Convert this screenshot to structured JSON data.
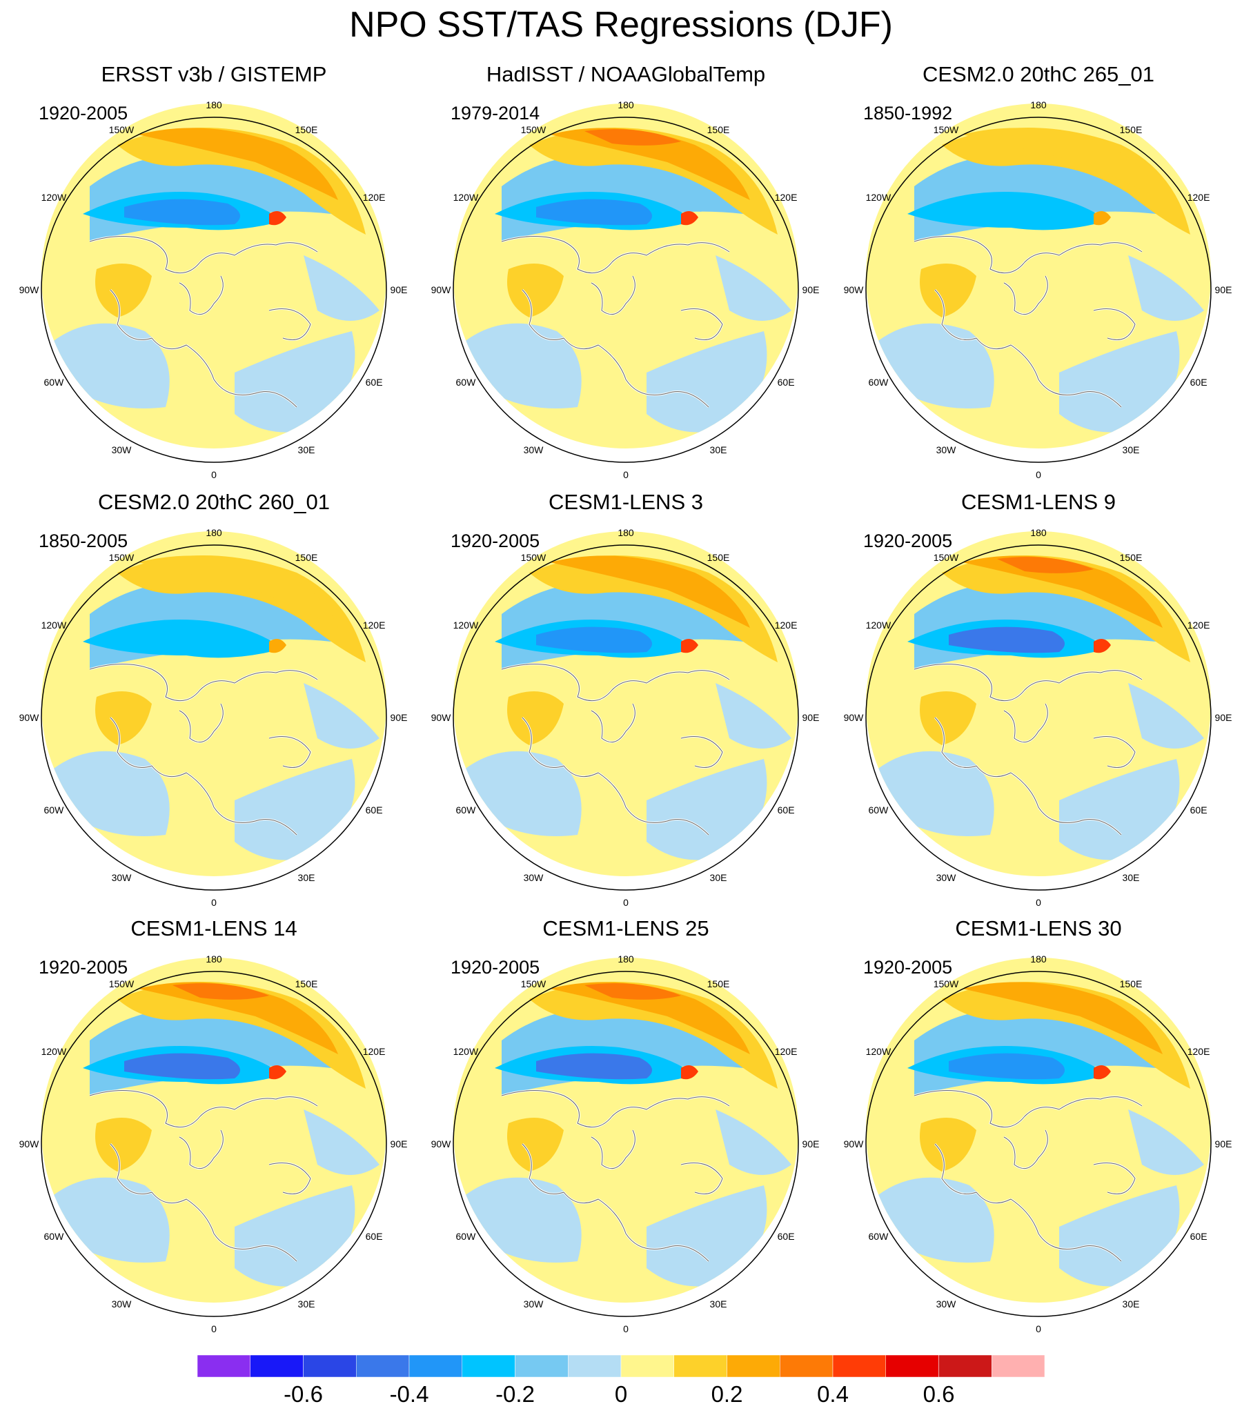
{
  "title": "NPO SST/TAS Regressions (DJF)",
  "longitude_labels": [
    "180",
    "150E",
    "120E",
    "90E",
    "60E",
    "30E",
    "0",
    "30W",
    "60W",
    "90W",
    "120W",
    "150W"
  ],
  "panels": [
    {
      "title": "ERSST v3b / GISTEMP",
      "period": "1920-2005",
      "style": "obs"
    },
    {
      "title": "HadISST / NOAAGlobalTemp",
      "period": "1979-2014",
      "style": "obs2"
    },
    {
      "title": "CESM2.0 20thC 265_01",
      "period": "1850-1992",
      "style": "weak"
    },
    {
      "title": "CESM2.0 20thC 260_01",
      "period": "1850-2005",
      "style": "weak"
    },
    {
      "title": "CESM1-LENS 3",
      "period": "1920-2005",
      "style": "mid"
    },
    {
      "title": "CESM1-LENS 9",
      "period": "1920-2005",
      "style": "strong"
    },
    {
      "title": "CESM1-LENS 14",
      "period": "1920-2005",
      "style": "strong"
    },
    {
      "title": "CESM1-LENS 25",
      "period": "1920-2005",
      "style": "strong"
    },
    {
      "title": "CESM1-LENS 30",
      "period": "1920-2005",
      "style": "mid"
    }
  ],
  "colorbar": {
    "colors": [
      "#8a2ef0",
      "#1818f8",
      "#2a46e6",
      "#3a78ea",
      "#2196f8",
      "#00c4ff",
      "#76c9f2",
      "#b4ddf4",
      "#fff68d",
      "#fdd12a",
      "#fdaa06",
      "#fd7a06",
      "#ff3c06",
      "#e60000",
      "#cc1818",
      "#ffb0b0"
    ],
    "labels": [
      "-0.6",
      "-0.4",
      "-0.2",
      "0",
      "0.2",
      "0.4",
      "0.6"
    ]
  }
}
